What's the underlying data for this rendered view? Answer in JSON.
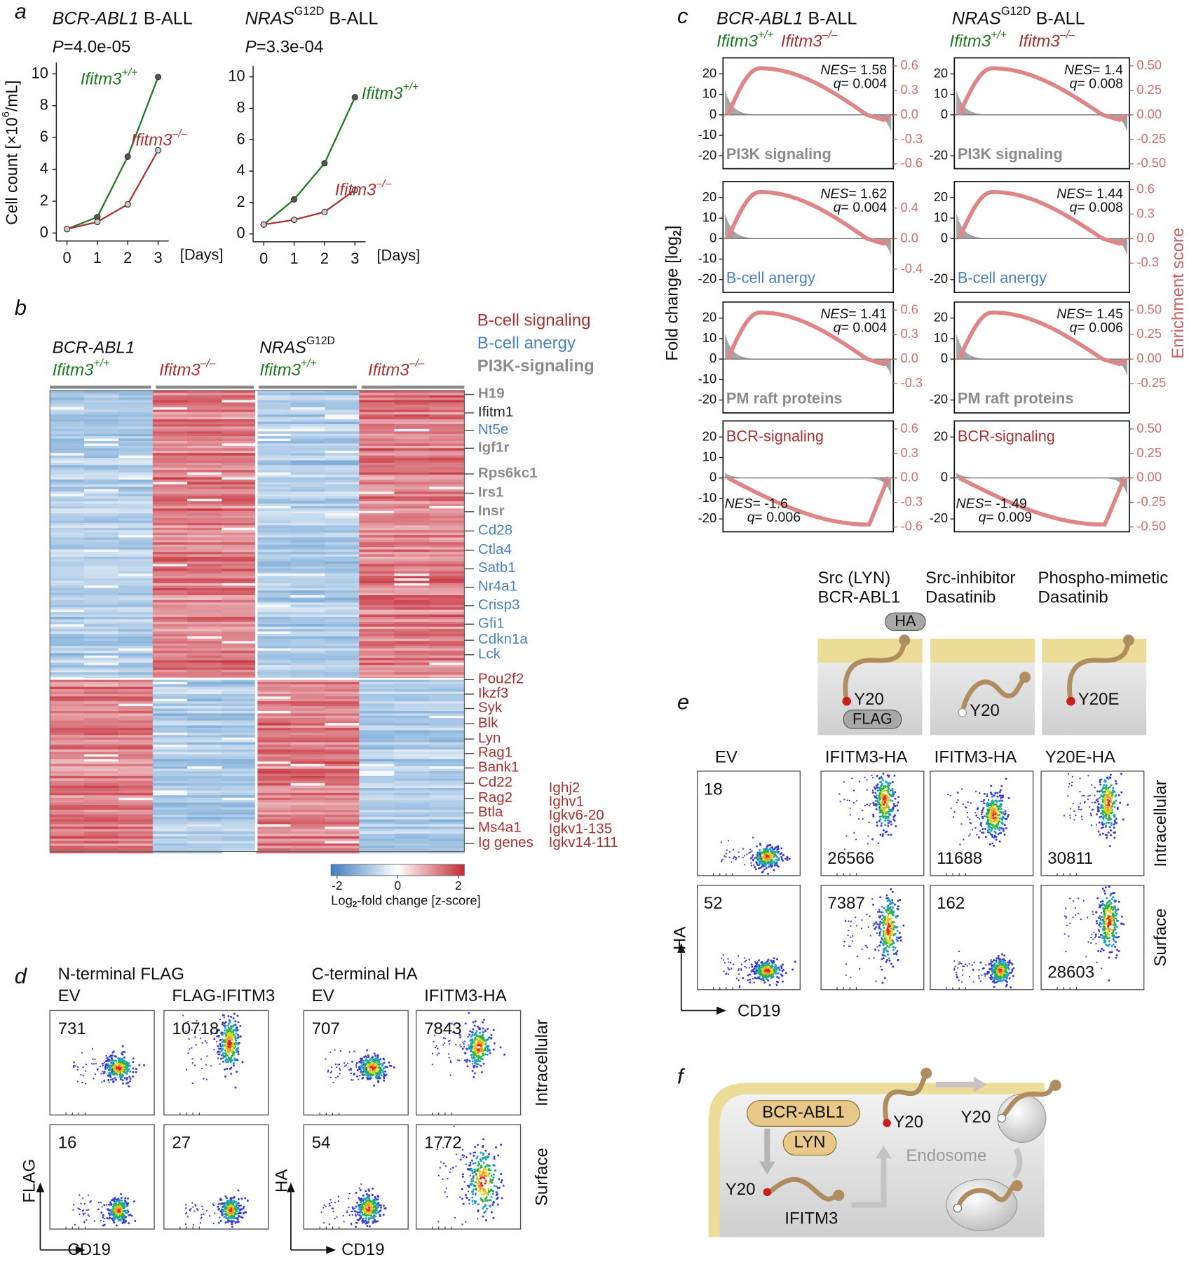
{
  "panel_labels": [
    "a",
    "b",
    "c",
    "d",
    "e",
    "f"
  ],
  "panel_a": {
    "ylabel": [
      "Cell count [×10",
      "6",
      "/mL]"
    ],
    "charts": [
      {
        "type": "line",
        "title": [
          "BCR-ABL1",
          " B-ALL"
        ],
        "p_label": [
          "P",
          "=4.0e-05"
        ],
        "x": [
          0,
          1,
          2,
          3
        ],
        "xlim": [
          -0.35,
          3.35
        ],
        "xticks": [
          0,
          1,
          2,
          3
        ],
        "x_unit": "[Days]",
        "ylim": [
          -0.5,
          10.7
        ],
        "yticks": [
          0,
          2,
          4,
          6,
          8,
          10
        ],
        "series": [
          {
            "name": [
              "Ifitm3",
              "+/+"
            ],
            "color": "#1f7a1f",
            "values": [
              0.25,
              1.0,
              4.8,
              9.8
            ]
          },
          {
            "name": [
              "Ifitm3",
              "–/–"
            ],
            "color": "#a83232",
            "values": [
              0.25,
              0.7,
              1.8,
              5.2
            ]
          }
        ]
      },
      {
        "type": "line",
        "title": [
          "NRAS",
          "G12D",
          " B-ALL"
        ],
        "p_label": [
          "P",
          "=3.3e-04"
        ],
        "x": [
          0,
          1,
          2,
          3
        ],
        "xlim": [
          -0.35,
          3.35
        ],
        "xticks": [
          0,
          1,
          2,
          3
        ],
        "x_unit": "[Days]",
        "ylim": [
          -0.5,
          10.7
        ],
        "yticks": [
          0,
          2,
          4,
          6,
          8,
          10
        ],
        "series": [
          {
            "name": [
              "Ifitm3",
              "+/+"
            ],
            "color": "#1f7a1f",
            "values": [
              0.6,
              2.2,
              4.5,
              8.7
            ]
          },
          {
            "name": [
              "Ifitm3",
              "–/–"
            ],
            "color": "#a83232",
            "values": [
              0.6,
              0.9,
              1.4,
              2.8
            ]
          }
        ]
      }
    ]
  },
  "panel_b": {
    "columns": [
      {
        "line1": [
          "BCR-ABL1"
        ],
        "line2": [
          "Ifitm3",
          "+/+"
        ],
        "color": "#1f7a1f"
      },
      {
        "line2": [
          "Ifitm3",
          "–/–"
        ],
        "color": "#a83232"
      },
      {
        "line1": [
          "NRAS",
          "G12D"
        ],
        "line2": [
          "Ifitm3",
          "+/+"
        ],
        "color": "#1f7a1f"
      },
      {
        "line2": [
          "Ifitm3",
          "–/–"
        ],
        "color": "#a83232"
      }
    ],
    "legend": [
      {
        "label": "B-cell signaling",
        "color": "#a83232"
      },
      {
        "label": "B-cell anergy",
        "color": "#4a82c0"
      },
      {
        "label": "PI3K-signaling",
        "color": "#8c8c8c"
      }
    ],
    "genes": [
      {
        "label": "H19",
        "color": "#8c8c8c"
      },
      {
        "label": "Ifitm1",
        "color": "#222222"
      },
      {
        "label": "Nt5e",
        "color": "#4a82c0"
      },
      {
        "label": "Igf1r",
        "color": "#8c8c8c"
      },
      {
        "label": "Rps6kc1",
        "color": "#8c8c8c"
      },
      {
        "label": "Irs1",
        "color": "#8c8c8c"
      },
      {
        "label": "Insr",
        "color": "#8c8c8c"
      },
      {
        "label": "Cd28",
        "color": "#4a82c0"
      },
      {
        "label": "Ctla4",
        "color": "#4a82c0"
      },
      {
        "label": "Satb1",
        "color": "#4a82c0"
      },
      {
        "label": "Nr4a1",
        "color": "#4a82c0"
      },
      {
        "label": "Crisp3",
        "color": "#4a82c0"
      },
      {
        "label": "Gfi1",
        "color": "#4a82c0"
      },
      {
        "label": "Cdkn1a",
        "color": "#4a82c0"
      },
      {
        "label": "Lck",
        "color": "#4a82c0"
      },
      {
        "label": "Pou2f2",
        "color": "#a83232"
      },
      {
        "label": "Ikzf3",
        "color": "#a83232"
      },
      {
        "label": "Syk",
        "color": "#a83232"
      },
      {
        "label": "Blk",
        "color": "#a83232"
      },
      {
        "label": "Lyn",
        "color": "#a83232"
      },
      {
        "label": "Rag1",
        "color": "#a83232"
      },
      {
        "label": "Bank1",
        "color": "#a83232"
      },
      {
        "label": "Cd22",
        "color": "#a83232"
      },
      {
        "label": "Rag2",
        "color": "#a83232"
      },
      {
        "label": "Btla",
        "color": "#a83232"
      },
      {
        "label": "Ms4a1",
        "color": "#a83232"
      },
      {
        "label": "Ig genes",
        "color": "#a83232"
      }
    ],
    "ig_genes": [
      "Ighj2",
      "Ighv1",
      "Igkv6-20",
      "Igkv1-135",
      "Igkv14-111"
    ],
    "colorbar": {
      "lim": [
        -2.2,
        2.2
      ],
      "ticks": [
        -2,
        0,
        2
      ],
      "label": [
        "Log",
        "2",
        "-fold change [z-score]"
      ]
    }
  },
  "panel_c": {
    "ylabel": [
      "Fold change [log",
      "2",
      "]"
    ],
    "y2label": "Enrichment score",
    "nes_name": "NES",
    "q_name": "q",
    "columns": [
      {
        "title": [
          "BCR-ABL1",
          " B-ALL"
        ],
        "groups": [
          [
            "Ifitm3",
            "+/+"
          ],
          [
            "Ifitm3",
            "–/–"
          ]
        ],
        "plots": [
          {
            "label": "PI3K signaling",
            "color": "#8c8c8c",
            "nes": "= 1.58",
            "q": "= 0.004",
            "yticks": [
              20,
              10,
              0,
              -10,
              -20
            ],
            "y2ticks": [
              "0.6",
              "0.3",
              "0.0",
              "-0.3",
              "-0.6"
            ]
          },
          {
            "label": "B-cell anergy",
            "color": "#4a82c0",
            "nes": "= 1.62",
            "q": "= 0.004",
            "yticks": [
              20,
              10,
              0,
              -10,
              -20
            ],
            "y2ticks": [
              "0.4",
              "0.0",
              "-0.4"
            ]
          },
          {
            "label": "PM raft proteins",
            "color": "#8c8c8c",
            "nes": "= 1.41",
            "q": "= 0.004",
            "yticks": [
              20,
              10,
              0,
              -10,
              -20
            ],
            "y2ticks": [
              "0.6",
              "0.3",
              "0.0",
              "-0.3"
            ]
          },
          {
            "label": "BCR-signaling",
            "color": "#a83232",
            "nes": "= -1.6",
            "q": "= 0.006",
            "yticks": [
              20,
              10,
              0,
              -10,
              -20
            ],
            "y2ticks": [
              "0.6",
              "0.3",
              "0.0",
              "-0.3",
              "-0.6"
            ]
          }
        ]
      },
      {
        "title": [
          "NRAS",
          "G12D",
          " B-ALL"
        ],
        "groups": [
          [
            "Ifitm3",
            "+/+"
          ],
          [
            "Ifitm3",
            "–/–"
          ]
        ],
        "plots": [
          {
            "label": "PI3K signaling",
            "color": "#8c8c8c",
            "nes": "= 1.4",
            "q": "= 0.008",
            "yticks": [
              20,
              10,
              0,
              -20
            ],
            "y2ticks": [
              "0.50",
              "0.25",
              "0.00",
              "-0.25",
              "-0.50"
            ]
          },
          {
            "label": "B-cell anergy",
            "color": "#4a82c0",
            "nes": "= 1.44",
            "q": "= 0.008",
            "yticks": [
              20,
              10,
              0,
              -20
            ],
            "y2ticks": [
              "0.6",
              "0.3",
              "0.0",
              "-0.3"
            ]
          },
          {
            "label": "PM raft proteins",
            "color": "#8c8c8c",
            "nes": "= 1.45",
            "q": "= 0.006",
            "yticks": [
              20,
              10,
              0,
              -20
            ],
            "y2ticks": [
              "0.50",
              "0.25",
              "0.00",
              "-0.25"
            ]
          },
          {
            "label": "BCR-signaling",
            "color": "#a83232",
            "nes": "= -1.49",
            "q": "= 0.009",
            "yticks": [
              20,
              0,
              -20
            ],
            "y2ticks": [
              "0.50",
              "0.25",
              "0.00",
              "-0.25",
              "-0.50"
            ]
          }
        ]
      }
    ]
  },
  "panel_d": {
    "groups": [
      {
        "title": "N-terminal FLAG",
        "columns": [
          "EV",
          "FLAG-IFITM3"
        ],
        "counts": [
          [
            731,
            10718
          ],
          [
            16,
            27
          ]
        ],
        "y_axis": "FLAG"
      },
      {
        "title": "C-terminal HA",
        "columns": [
          "EV",
          "IFITM3-HA"
        ],
        "counts": [
          [
            707,
            7843
          ],
          [
            54,
            1772
          ]
        ],
        "y_axis": "HA"
      }
    ],
    "rows": [
      "Intracellular",
      "Surface"
    ],
    "x_axis": "CD19"
  },
  "panel_e": {
    "schematic": [
      {
        "line1": "Src (LYN)",
        "line2": "BCR-ABL1",
        "site": "Y20"
      },
      {
        "line1": "Src-inhibitor",
        "line2": "Dasatinib",
        "site": "Y20"
      },
      {
        "line1": "Phospho-mimetic",
        "line2": "Dasatinib",
        "site": "Y20E"
      }
    ],
    "tags": [
      "HA",
      "FLAG"
    ],
    "columns": [
      "EV",
      "IFITM3-HA",
      "IFITM3-HA",
      "Y20E-HA"
    ],
    "counts": [
      [
        18,
        26566,
        11688,
        30811
      ],
      [
        52,
        7387,
        162,
        28603
      ]
    ],
    "rows": [
      "Intracellular",
      "Surface"
    ],
    "y_axis": "HA",
    "x_axis": "CD19"
  },
  "panel_f": {
    "kinases": [
      "BCR-ABL1",
      "LYN"
    ],
    "sites": [
      "Y20",
      "Y20",
      "Y20"
    ],
    "compartment": "Endosome",
    "protein": "IFITM3"
  }
}
